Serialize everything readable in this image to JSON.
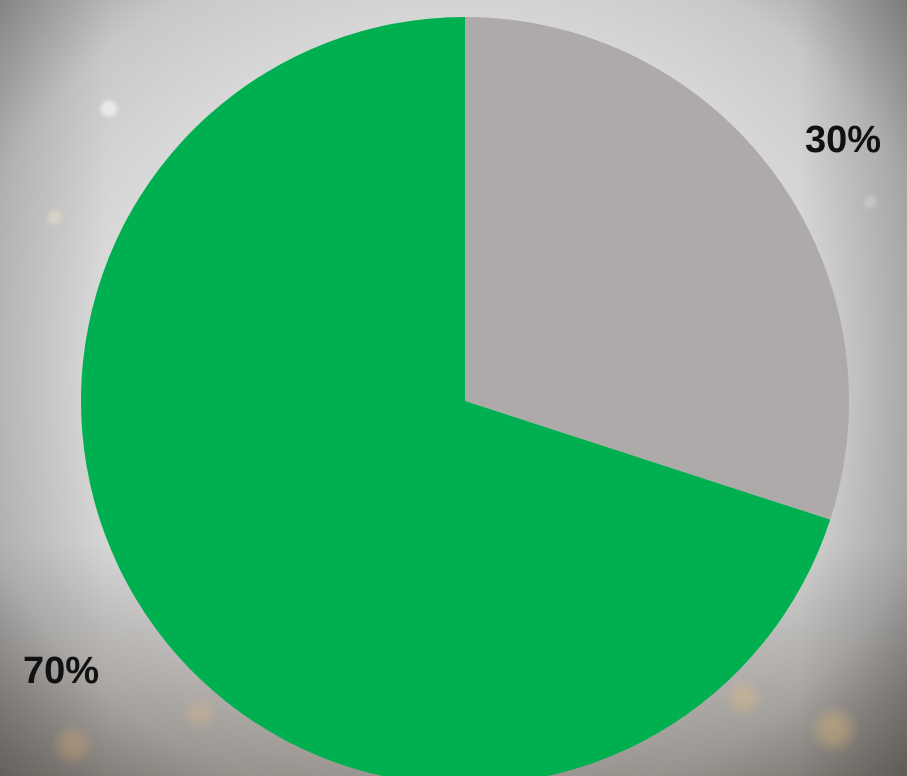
{
  "chart_data": {
    "type": "pie",
    "slices": [
      {
        "label": "30%",
        "value": 30,
        "color": "#aeaaaa"
      },
      {
        "label": "70%",
        "value": 70,
        "color": "#00b050"
      }
    ],
    "title": "",
    "legend": "none",
    "start_angle_deg": 0,
    "direction": "clockwise"
  }
}
